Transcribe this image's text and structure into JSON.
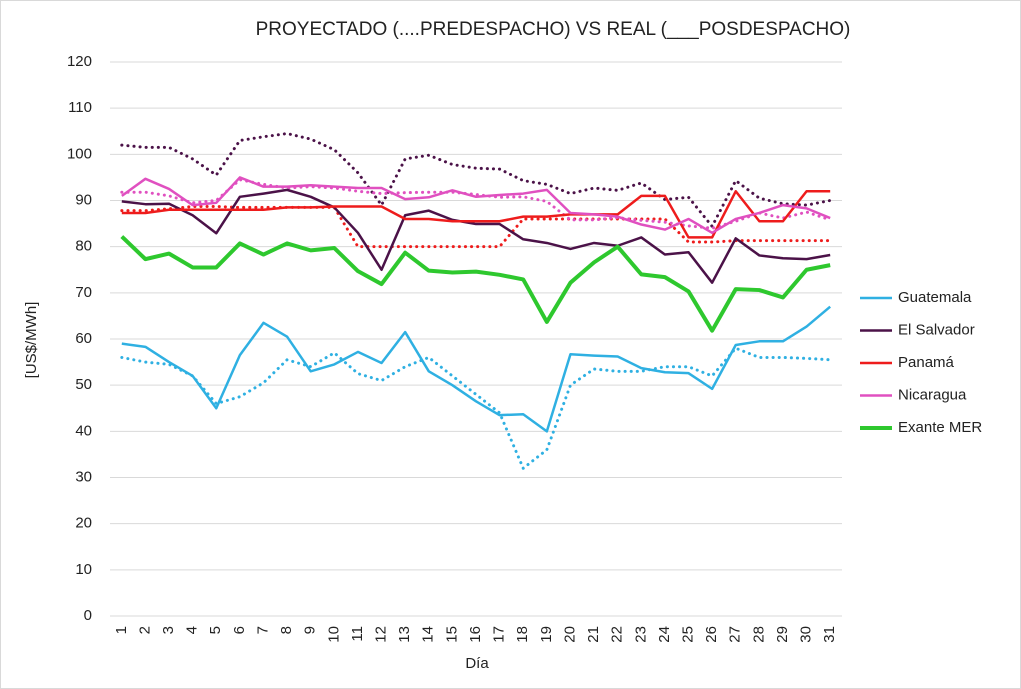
{
  "chart_data": {
    "type": "line",
    "title": "PROYECTADO (....PREDESPACHO) VS REAL (___POSDESPACHO)",
    "x_label": "Día",
    "y_label": "[US$/MWh]",
    "categories": [
      "1",
      "2",
      "3",
      "4",
      "5",
      "6",
      "7",
      "8",
      "9",
      "10",
      "11",
      "12",
      "13",
      "14",
      "15",
      "16",
      "17",
      "18",
      "19",
      "20",
      "21",
      "22",
      "23",
      "24",
      "25",
      "26",
      "27",
      "28",
      "29",
      "30",
      "31"
    ],
    "ylim": [
      0,
      120
    ],
    "yticks": [
      0,
      10,
      20,
      30,
      40,
      50,
      60,
      70,
      80,
      90,
      100,
      110,
      120
    ],
    "grid": true,
    "legend": "right",
    "series": [
      {
        "color": "#2fb0e2",
        "style": "dotted",
        "values": [
          56,
          55,
          54.5,
          52,
          46,
          47.5,
          50.5,
          55.5,
          54,
          57,
          52.5,
          51,
          54,
          56,
          52,
          48,
          44,
          32,
          36,
          50,
          53.5,
          53,
          53,
          54,
          54,
          52,
          58,
          56,
          56,
          55.8,
          55.5
        ]
      },
      {
        "color": "#4b1248",
        "style": "dotted",
        "values": [
          102,
          101.5,
          101.5,
          99,
          95.5,
          103,
          103.8,
          104.5,
          103.3,
          101,
          96,
          89,
          99,
          99.8,
          97.8,
          97,
          96.8,
          94.3,
          93.5,
          91.5,
          92.7,
          92.2,
          93.8,
          90.2,
          90.7,
          84.4,
          94.3,
          90.5,
          89.3,
          89,
          90
        ]
      },
      {
        "color": "#ee1c1c",
        "style": "dotted",
        "values": [
          87.8,
          87.8,
          88.2,
          88.7,
          88.7,
          88.5,
          88.5,
          88.5,
          88.5,
          88.5,
          80,
          80,
          80,
          80,
          80,
          80,
          80,
          86,
          86,
          86,
          86,
          86,
          86,
          86,
          81,
          81,
          81.3,
          81.3,
          81.3,
          81.3,
          81.3
        ]
      },
      {
        "color": "#e050c0",
        "style": "dotted",
        "values": [
          91.8,
          91.8,
          91,
          89.5,
          90,
          94.5,
          93.5,
          92.7,
          93,
          92.7,
          92,
          91.5,
          91.7,
          91.8,
          91.8,
          91.3,
          90.7,
          90.8,
          89.8,
          85.8,
          85.8,
          86.3,
          85.7,
          85.3,
          84.5,
          84,
          85.5,
          87.3,
          86.2,
          87.5,
          85.8
        ]
      },
      {
        "name": "Guatemala",
        "color": "#2fb0e2",
        "values": [
          59,
          58.3,
          55,
          52,
          45,
          56.5,
          63.5,
          60.5,
          53,
          54.5,
          57.2,
          54.8,
          61.5,
          53,
          50,
          46.5,
          43.5,
          43.7,
          40,
          56.7,
          56.4,
          56.2,
          53.7,
          52.8,
          52.6,
          49.2,
          58.7,
          59.5,
          59.5,
          62.7,
          67
        ]
      },
      {
        "name": "El Salvador",
        "color": "#4b1248",
        "values": [
          89.8,
          89.2,
          89.3,
          86.8,
          82.9,
          90.8,
          91.5,
          92.3,
          90.8,
          88.5,
          83,
          75,
          86.8,
          87.8,
          85.8,
          84.9,
          84.9,
          81.6,
          80.8,
          79.5,
          80.8,
          80.2,
          82,
          78.3,
          78.8,
          72.2,
          81.8,
          78.1,
          77.5,
          77.3,
          78.2
        ]
      },
      {
        "name": "Panamá",
        "color": "#ee1c1c",
        "values": [
          87.3,
          87.3,
          88,
          88,
          88,
          88,
          88,
          88.5,
          88.5,
          88.7,
          88.7,
          88.7,
          86,
          86,
          85.5,
          85.5,
          85.5,
          86.5,
          86.5,
          87,
          87,
          87,
          91,
          91,
          82,
          82,
          92,
          85.5,
          85.5,
          92,
          92
        ]
      },
      {
        "name": "Nicaragua",
        "color": "#e050c0",
        "values": [
          91,
          94.7,
          92.5,
          89,
          89.5,
          95,
          93,
          93,
          93.3,
          93,
          92.7,
          92.7,
          90.3,
          90.7,
          92.2,
          90.8,
          91.2,
          91.5,
          92.3,
          87.3,
          87,
          86.5,
          84.8,
          83.7,
          86,
          83,
          86,
          87.3,
          89,
          88.3,
          86.2
        ]
      },
      {
        "name": "Exante MER",
        "color": "#2ec82e",
        "width": 4,
        "values": [
          82.2,
          77.3,
          78.5,
          75.5,
          75.5,
          80.7,
          78.3,
          80.7,
          79.2,
          79.7,
          74.7,
          71.9,
          78.7,
          74.8,
          74.4,
          74.6,
          73.9,
          72.9,
          63.7,
          72.2,
          76.6,
          80,
          74,
          73.4,
          70.3,
          61.8,
          70.8,
          70.6,
          69,
          75,
          76
        ]
      }
    ]
  }
}
